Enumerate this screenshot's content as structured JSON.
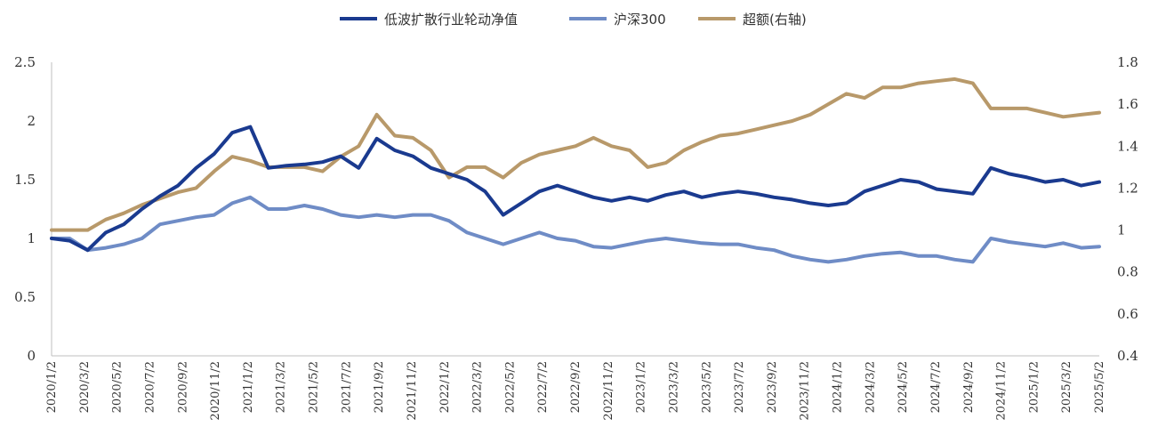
{
  "chart_data": {
    "type": "line",
    "title": "",
    "legend_position": "top",
    "series": [
      {
        "name": "低波扩散行业轮动净值",
        "axis": "left",
        "color": "#1a3a8f",
        "points": [
          [
            0,
            1.0
          ],
          [
            1,
            0.98
          ],
          [
            2,
            0.9
          ],
          [
            3,
            1.05
          ],
          [
            4,
            1.12
          ],
          [
            5,
            1.25
          ],
          [
            6,
            1.36
          ],
          [
            7,
            1.45
          ],
          [
            8,
            1.6
          ],
          [
            9,
            1.72
          ],
          [
            10,
            1.9
          ],
          [
            11,
            1.95
          ],
          [
            12,
            1.6
          ],
          [
            13,
            1.62
          ],
          [
            14,
            1.63
          ],
          [
            15,
            1.65
          ],
          [
            16,
            1.7
          ],
          [
            17,
            1.6
          ],
          [
            18,
            1.85
          ],
          [
            19,
            1.75
          ],
          [
            20,
            1.7
          ],
          [
            21,
            1.6
          ],
          [
            22,
            1.55
          ],
          [
            23,
            1.5
          ],
          [
            24,
            1.4
          ],
          [
            25,
            1.2
          ],
          [
            26,
            1.3
          ],
          [
            27,
            1.4
          ],
          [
            28,
            1.45
          ],
          [
            29,
            1.4
          ],
          [
            30,
            1.35
          ],
          [
            31,
            1.32
          ],
          [
            32,
            1.35
          ],
          [
            33,
            1.32
          ],
          [
            34,
            1.37
          ],
          [
            35,
            1.4
          ],
          [
            36,
            1.35
          ],
          [
            37,
            1.38
          ],
          [
            38,
            1.4
          ],
          [
            39,
            1.38
          ],
          [
            40,
            1.35
          ],
          [
            41,
            1.33
          ],
          [
            42,
            1.3
          ],
          [
            43,
            1.28
          ],
          [
            44,
            1.3
          ],
          [
            45,
            1.4
          ],
          [
            46,
            1.45
          ],
          [
            47,
            1.5
          ],
          [
            48,
            1.48
          ],
          [
            49,
            1.42
          ],
          [
            50,
            1.4
          ],
          [
            51,
            1.38
          ],
          [
            52,
            1.6
          ],
          [
            53,
            1.55
          ],
          [
            54,
            1.52
          ],
          [
            55,
            1.48
          ],
          [
            56,
            1.5
          ],
          [
            57,
            1.45
          ],
          [
            58,
            1.48
          ]
        ]
      },
      {
        "name": "沪深300",
        "axis": "left",
        "color": "#6f8cc6",
        "points": [
          [
            0,
            1.0
          ],
          [
            1,
            1.0
          ],
          [
            2,
            0.9
          ],
          [
            3,
            0.92
          ],
          [
            4,
            0.95
          ],
          [
            5,
            1.0
          ],
          [
            6,
            1.12
          ],
          [
            7,
            1.15
          ],
          [
            8,
            1.18
          ],
          [
            9,
            1.2
          ],
          [
            10,
            1.3
          ],
          [
            11,
            1.35
          ],
          [
            12,
            1.25
          ],
          [
            13,
            1.25
          ],
          [
            14,
            1.28
          ],
          [
            15,
            1.25
          ],
          [
            16,
            1.2
          ],
          [
            17,
            1.18
          ],
          [
            18,
            1.2
          ],
          [
            19,
            1.18
          ],
          [
            20,
            1.2
          ],
          [
            21,
            1.2
          ],
          [
            22,
            1.15
          ],
          [
            23,
            1.05
          ],
          [
            24,
            1.0
          ],
          [
            25,
            0.95
          ],
          [
            26,
            1.0
          ],
          [
            27,
            1.05
          ],
          [
            28,
            1.0
          ],
          [
            29,
            0.98
          ],
          [
            30,
            0.93
          ],
          [
            31,
            0.92
          ],
          [
            32,
            0.95
          ],
          [
            33,
            0.98
          ],
          [
            34,
            1.0
          ],
          [
            35,
            0.98
          ],
          [
            36,
            0.96
          ],
          [
            37,
            0.95
          ],
          [
            38,
            0.95
          ],
          [
            39,
            0.92
          ],
          [
            40,
            0.9
          ],
          [
            41,
            0.85
          ],
          [
            42,
            0.82
          ],
          [
            43,
            0.8
          ],
          [
            44,
            0.82
          ],
          [
            45,
            0.85
          ],
          [
            46,
            0.87
          ],
          [
            47,
            0.88
          ],
          [
            48,
            0.85
          ],
          [
            49,
            0.85
          ],
          [
            50,
            0.82
          ],
          [
            51,
            0.8
          ],
          [
            52,
            1.0
          ],
          [
            53,
            0.97
          ],
          [
            54,
            0.95
          ],
          [
            55,
            0.93
          ],
          [
            56,
            0.96
          ],
          [
            57,
            0.92
          ],
          [
            58,
            0.93
          ]
        ]
      },
      {
        "name": "超额(右轴)",
        "axis": "right",
        "color": "#b8996a",
        "points": [
          [
            0,
            1.0
          ],
          [
            1,
            1.0
          ],
          [
            2,
            1.0
          ],
          [
            3,
            1.05
          ],
          [
            4,
            1.08
          ],
          [
            5,
            1.12
          ],
          [
            6,
            1.15
          ],
          [
            7,
            1.18
          ],
          [
            8,
            1.2
          ],
          [
            9,
            1.28
          ],
          [
            10,
            1.35
          ],
          [
            11,
            1.33
          ],
          [
            12,
            1.3
          ],
          [
            13,
            1.3
          ],
          [
            14,
            1.3
          ],
          [
            15,
            1.28
          ],
          [
            16,
            1.35
          ],
          [
            17,
            1.4
          ],
          [
            18,
            1.55
          ],
          [
            19,
            1.45
          ],
          [
            20,
            1.44
          ],
          [
            21,
            1.38
          ],
          [
            22,
            1.25
          ],
          [
            23,
            1.3
          ],
          [
            24,
            1.3
          ],
          [
            25,
            1.25
          ],
          [
            26,
            1.32
          ],
          [
            27,
            1.36
          ],
          [
            28,
            1.38
          ],
          [
            29,
            1.4
          ],
          [
            30,
            1.44
          ],
          [
            31,
            1.4
          ],
          [
            32,
            1.38
          ],
          [
            33,
            1.3
          ],
          [
            34,
            1.32
          ],
          [
            35,
            1.38
          ],
          [
            36,
            1.42
          ],
          [
            37,
            1.45
          ],
          [
            38,
            1.46
          ],
          [
            39,
            1.48
          ],
          [
            40,
            1.5
          ],
          [
            41,
            1.52
          ],
          [
            42,
            1.55
          ],
          [
            43,
            1.6
          ],
          [
            44,
            1.65
          ],
          [
            45,
            1.63
          ],
          [
            46,
            1.68
          ],
          [
            47,
            1.68
          ],
          [
            48,
            1.7
          ],
          [
            49,
            1.71
          ],
          [
            50,
            1.72
          ],
          [
            51,
            1.7
          ],
          [
            52,
            1.58
          ],
          [
            53,
            1.58
          ],
          [
            54,
            1.58
          ],
          [
            55,
            1.56
          ],
          [
            56,
            1.54
          ],
          [
            57,
            1.55
          ],
          [
            58,
            1.56
          ]
        ]
      }
    ],
    "left_axis": {
      "ylim": [
        0,
        2.5
      ],
      "ticks": [
        "0",
        "0.5",
        "1",
        "1.5",
        "2",
        "2.5"
      ]
    },
    "right_axis": {
      "ylim": [
        0.4,
        1.8
      ],
      "ticks": [
        "0.4",
        "0.6",
        "0.8",
        "1",
        "1.2",
        "1.4",
        "1.6",
        "1.8"
      ]
    },
    "x_axis": {
      "xlim": [
        0,
        58
      ],
      "tick_labels": [
        "2020/1/2",
        "2020/3/2",
        "2020/5/2",
        "2020/7/2",
        "2020/9/2",
        "2020/11/2",
        "2021/1/2",
        "2021/3/2",
        "2021/5/2",
        "2021/7/2",
        "2021/9/2",
        "2021/11/2",
        "2022/1/2",
        "2022/3/2",
        "2022/5/2",
        "2022/7/2",
        "2022/9/2",
        "2022/11/2",
        "2023/1/2",
        "2023/3/2",
        "2023/5/2",
        "2023/7/2",
        "2023/9/2",
        "2023/11/2",
        "2024/1/2",
        "2024/3/2",
        "2024/5/2",
        "2024/7/2",
        "2024/9/2",
        "2024/11/2",
        "2025/1/2",
        "2025/3/2",
        "2025/5/2"
      ]
    }
  }
}
